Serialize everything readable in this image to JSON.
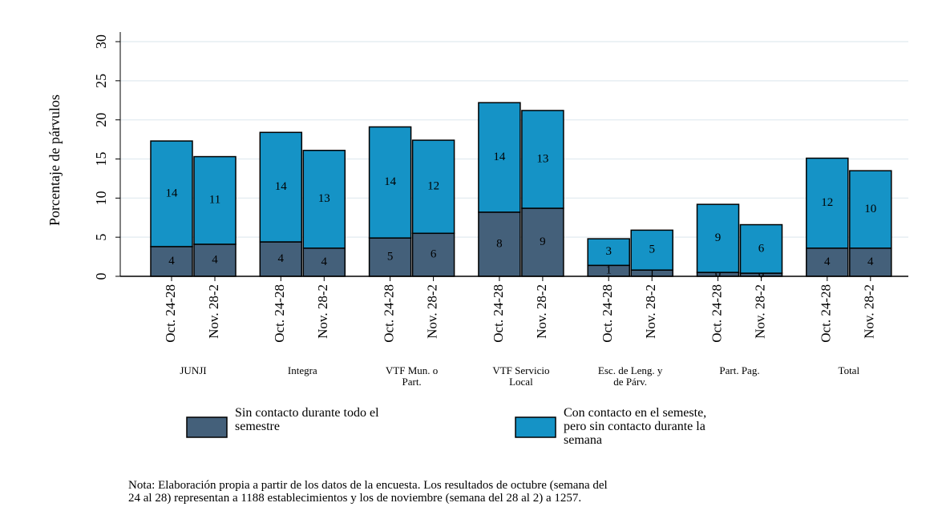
{
  "chart_data": {
    "type": "stacked-bar",
    "y_label": "Porcentaje de párvulos",
    "groups": [
      "JUNJI",
      "Integra",
      "VTF Mun. o\nPart.",
      "VTF Servicio\nLocal",
      "Esc. de Leng. y\nde Párv.",
      "Part. Pag.",
      "Total"
    ],
    "categories": [
      "Oct. 24-28",
      "Nov. 28-2",
      "Oct. 24-28",
      "Nov. 28-2",
      "Oct. 24-28",
      "Nov. 28-2",
      "Oct. 24-28",
      "Nov. 28-2",
      "Oct. 24-28",
      "Nov. 28-2",
      "Oct. 24-28",
      "Nov. 28-2",
      "Oct. 24-28",
      "Nov. 28-2"
    ],
    "series": [
      {
        "name": "Sin contacto durante todo el\nsemestre",
        "color": "#44607a",
        "values": [
          3.8,
          4.1,
          4.4,
          3.6,
          4.9,
          5.5,
          8.2,
          8.7,
          1.4,
          0.8,
          0.5,
          0.4,
          3.6,
          3.6
        ],
        "value_labels": [
          "4",
          "4",
          "4",
          "4",
          "5",
          "6",
          "8",
          "9",
          "1",
          "1",
          "0",
          "0",
          "4",
          "4"
        ]
      },
      {
        "name": "Con contacto en el semeste,\npero sin contacto durante la\nsemana",
        "color": "#1593c6",
        "values": [
          13.5,
          11.2,
          14.0,
          12.5,
          14.2,
          11.9,
          14.0,
          12.5,
          3.4,
          5.1,
          8.7,
          6.2,
          11.5,
          9.9
        ],
        "value_labels": [
          "14",
          "11",
          "14",
          "13",
          "14",
          "12",
          "14",
          "13",
          "3",
          "5",
          "9",
          "6",
          "12",
          "10"
        ]
      }
    ],
    "ylim": [
      0,
      30
    ],
    "yticks": [
      0,
      5,
      10,
      15,
      20,
      25,
      30
    ],
    "grid": true,
    "note": "Nota: Elaboración propia a partir de los datos de la encuesta. Los resultados de octubre (semana del\n24 al 28) representan a 1188 establecimientos y los de noviembre (semana del 28 al 2) a 1257."
  }
}
